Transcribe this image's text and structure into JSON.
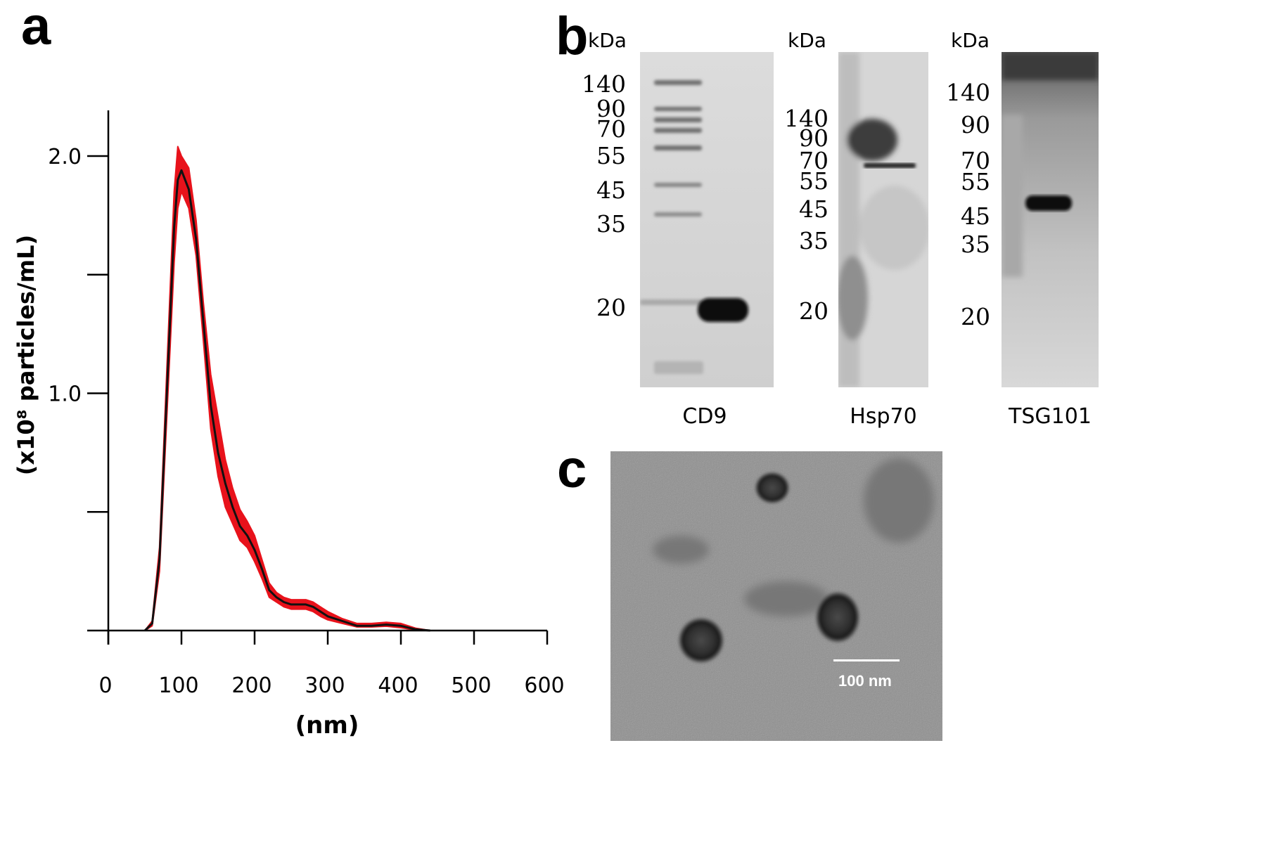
{
  "panels": {
    "a": {
      "letter": "a"
    },
    "b": {
      "letter": "b"
    },
    "c": {
      "letter": "c"
    }
  },
  "chart_data": {
    "type": "line",
    "title": "",
    "xlabel": "(nm)",
    "ylabel": "(x10⁸ particles/mL)",
    "xlim": [
      0,
      600
    ],
    "ylim": [
      0,
      2.0
    ],
    "x_ticks": [
      "0",
      "100",
      "200",
      "300",
      "400",
      "500",
      "600"
    ],
    "y_ticks": [
      "1.0",
      "2.0"
    ],
    "y_minor_ticks": [
      0.5,
      1.5
    ],
    "grid": false,
    "colors": {
      "mean": "#111111",
      "band": "#e8121b"
    },
    "series": [
      {
        "x": [
          50,
          60,
          70,
          80,
          90,
          95,
          100,
          110,
          120,
          130,
          140,
          150,
          160,
          170,
          180,
          190,
          200,
          210,
          220,
          230,
          240,
          250,
          260,
          270,
          280,
          290,
          300,
          320,
          340,
          360,
          380,
          400,
          420,
          440
        ],
        "y": [
          0.0,
          0.03,
          0.3,
          1.0,
          1.7,
          1.9,
          1.94,
          1.86,
          1.65,
          1.3,
          0.95,
          0.75,
          0.62,
          0.52,
          0.44,
          0.4,
          0.34,
          0.26,
          0.17,
          0.14,
          0.12,
          0.11,
          0.11,
          0.11,
          0.1,
          0.08,
          0.06,
          0.04,
          0.02,
          0.02,
          0.025,
          0.02,
          0.005,
          0.0
        ],
        "upper": [
          0.0,
          0.04,
          0.35,
          1.1,
          1.85,
          2.04,
          2.0,
          1.95,
          1.73,
          1.38,
          1.08,
          0.9,
          0.72,
          0.6,
          0.51,
          0.46,
          0.4,
          0.3,
          0.2,
          0.16,
          0.14,
          0.13,
          0.13,
          0.13,
          0.12,
          0.1,
          0.08,
          0.05,
          0.03,
          0.03,
          0.035,
          0.03,
          0.01,
          0.0
        ],
        "lower": [
          0.0,
          0.02,
          0.25,
          0.9,
          1.55,
          1.78,
          1.85,
          1.78,
          1.58,
          1.22,
          0.85,
          0.65,
          0.52,
          0.45,
          0.38,
          0.35,
          0.29,
          0.22,
          0.14,
          0.12,
          0.1,
          0.09,
          0.09,
          0.09,
          0.08,
          0.06,
          0.045,
          0.03,
          0.015,
          0.015,
          0.018,
          0.012,
          0.002,
          0.0
        ]
      }
    ]
  },
  "blots": {
    "unit": "kDa",
    "cd9": {
      "name": "CD9",
      "markers": [
        "140",
        "90",
        "70",
        "55",
        "45",
        "35",
        "20"
      ]
    },
    "hsp70": {
      "name": "Hsp70",
      "markers": [
        "140",
        "90",
        "70",
        "55",
        "45",
        "35",
        "20"
      ]
    },
    "tsg101": {
      "name": "TSG101",
      "markers": [
        "140",
        "90",
        "70",
        "55",
        "45",
        "35",
        "20"
      ]
    }
  },
  "tem": {
    "scale_bar_label": "100 nm"
  }
}
